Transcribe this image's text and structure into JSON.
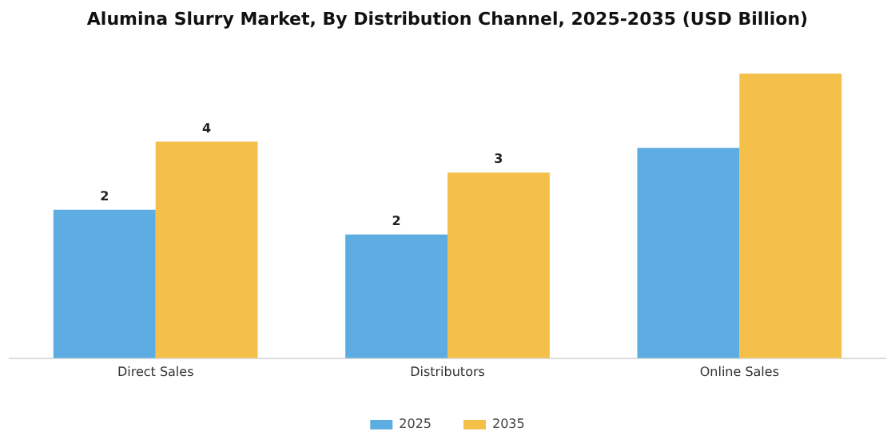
{
  "chart_data": {
    "type": "bar",
    "title": "Alumina Slurry Market, By Distribution Channel, 2025-2035 (USD Billion)",
    "categories": [
      "Direct Sales",
      "Distributors",
      "Online Sales"
    ],
    "tick_labels": "x",
    "legend": "bottom",
    "grid": false,
    "series": [
      {
        "name": "2025",
        "color": "#5dade2",
        "values": [
          2.4,
          2.0,
          3.4
        ],
        "value_labels": [
          "2",
          "2",
          null
        ]
      },
      {
        "name": "2035",
        "color": "#f5c04a",
        "values": [
          3.5,
          3.0,
          4.6
        ],
        "value_labels": [
          "4",
          "3",
          null
        ]
      }
    ]
  }
}
